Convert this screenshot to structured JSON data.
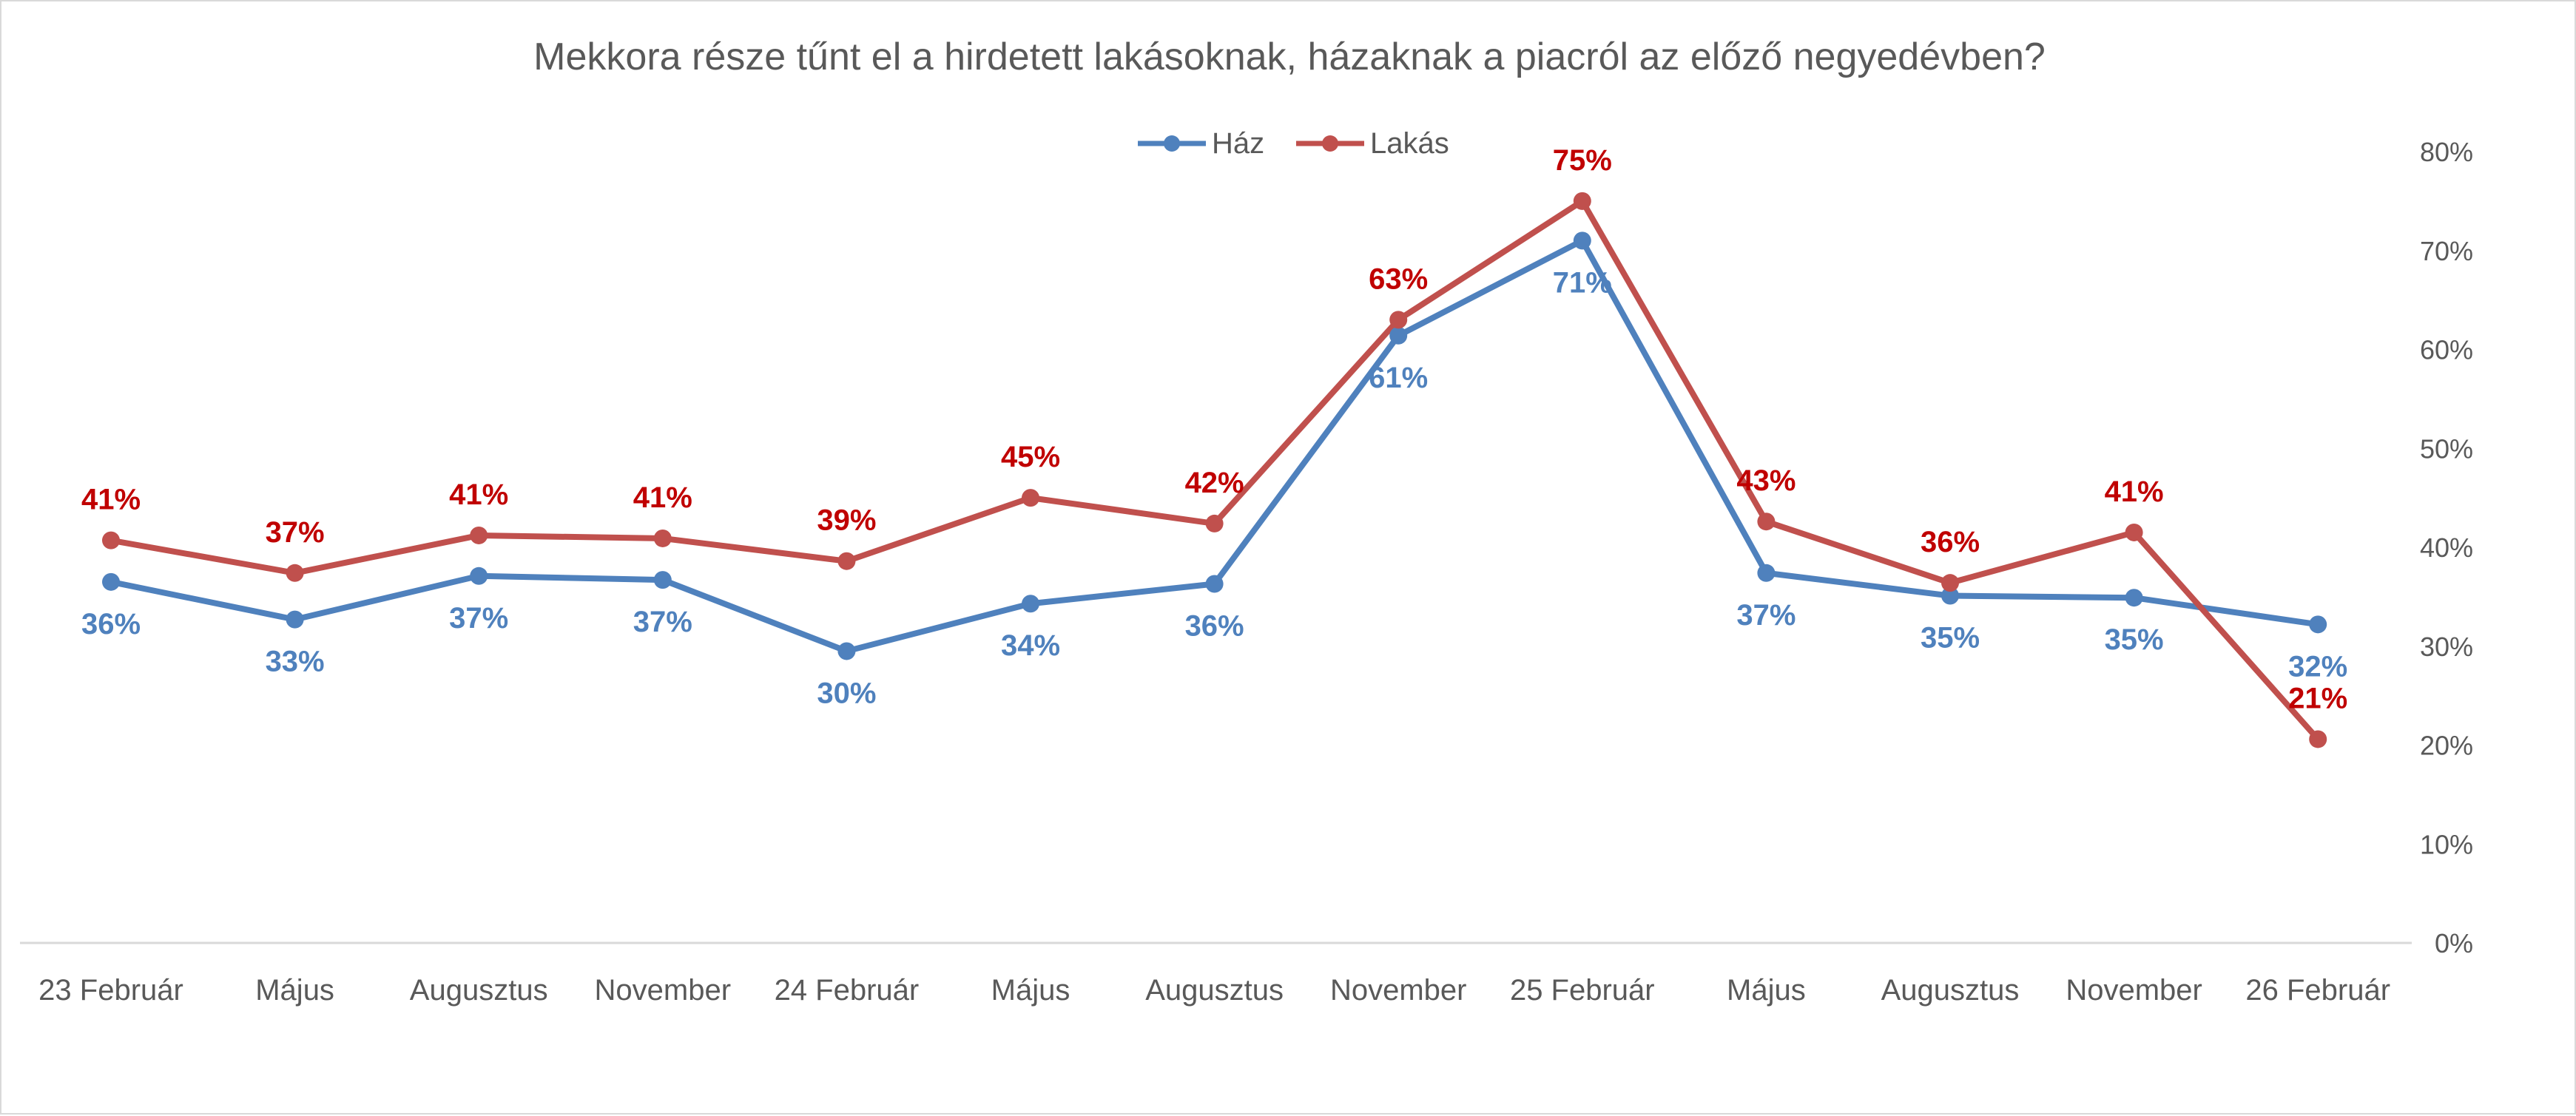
{
  "chart_data": {
    "type": "line",
    "title": "Mekkora része tűnt el a hirdetett lakásoknak, házaknak a piacról az előző negyedévben?",
    "categories": [
      "23 Február",
      "Május",
      "Augusztus",
      "November",
      "24 Február",
      "Május",
      "Augusztus",
      "November",
      "25 Február",
      "Május",
      "Augusztus",
      "November",
      "26 Február"
    ],
    "series": [
      {
        "name": "Ház",
        "color": "#4f81bd",
        "values": [
          36.5,
          32.7,
          37.1,
          36.7,
          29.5,
          34.3,
          36.3,
          61.4,
          71.0,
          37.4,
          35.1,
          34.9,
          32.2
        ],
        "labels": [
          "36%",
          "33%",
          "37%",
          "37%",
          "30%",
          "34%",
          "36%",
          "61%",
          "71%",
          "37%",
          "35%",
          "35%",
          "32%"
        ]
      },
      {
        "name": "Lakás",
        "color": "#c0504d",
        "label_color": "#c00000",
        "values": [
          40.7,
          37.4,
          41.2,
          40.9,
          38.6,
          45.0,
          42.4,
          63.0,
          75.0,
          42.6,
          36.4,
          41.5,
          20.6
        ],
        "labels": [
          "41%",
          "37%",
          "41%",
          "41%",
          "39%",
          "45%",
          "42%",
          "63%",
          "75%",
          "43%",
          "36%",
          "41%",
          "21%"
        ]
      }
    ],
    "ylim": [
      0,
      80
    ],
    "yticks": [
      "0%",
      "10%",
      "20%",
      "30%",
      "40%",
      "50%",
      "60%",
      "70%",
      "80%"
    ],
    "y_axis_side": "right",
    "legend_position": "top-center",
    "grid": false,
    "xlabel": "",
    "ylabel": ""
  }
}
